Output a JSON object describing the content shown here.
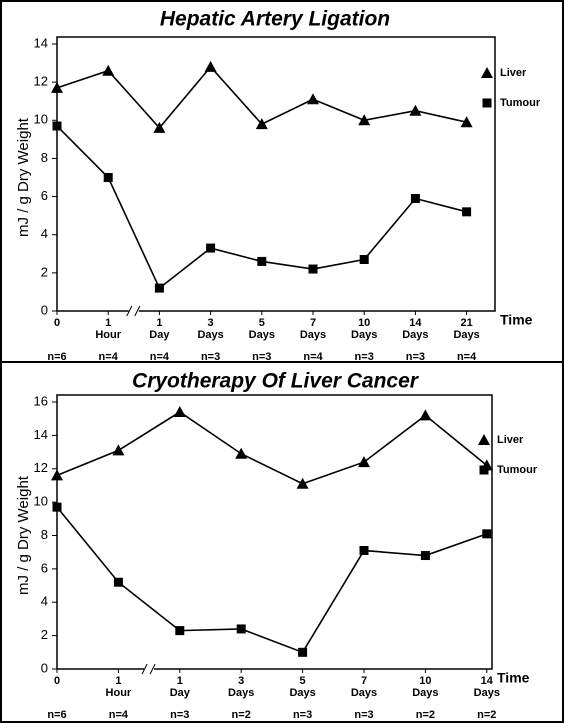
{
  "chart_data": [
    {
      "type": "line",
      "title": "Hepatic  Artery  Ligation",
      "y_label": "mJ / g  Dry  Weight",
      "x_label": "Time",
      "categories": [
        "0",
        "1\nHour",
        "1\nDay",
        "3\nDays",
        "5\nDays",
        "7\nDays",
        "10\nDays",
        "14\nDays",
        "21\nDays"
      ],
      "n_labels": [
        "n=6",
        "n=4",
        "n=4",
        "n=3",
        "n=3",
        "n=4",
        "n=3",
        "n=3",
        "n=4"
      ],
      "series": [
        {
          "name": "Liver",
          "color": "#000000",
          "marker": "triangle",
          "values": [
            11.7,
            12.6,
            9.6,
            12.8,
            9.8,
            11.1,
            10.0,
            10.5,
            9.9
          ]
        },
        {
          "name": "Tumour",
          "color": "#000000",
          "marker": "square",
          "values": [
            9.7,
            7.0,
            1.2,
            3.3,
            2.6,
            2.2,
            2.7,
            5.9,
            5.2
          ]
        }
      ],
      "ylim": [
        0,
        14
      ],
      "yticks": [
        0,
        2,
        4,
        6,
        8,
        10,
        12,
        14
      ],
      "legend": "right"
    },
    {
      "type": "line",
      "title": "Cryotherapy Of Liver Cancer",
      "y_label": "mJ / g  Dry  Weight",
      "x_label": "Time",
      "categories": [
        "0",
        "1\nHour",
        "1\nDay",
        "3\nDays",
        "5\nDays",
        "7\nDays",
        "10\nDays",
        "14\nDays"
      ],
      "n_labels": [
        "n=6",
        "n=4",
        "n=3",
        "n=2",
        "n=3",
        "n=3",
        "n=2",
        "n=2"
      ],
      "series": [
        {
          "name": "Liver",
          "color": "#000000",
          "marker": "triangle",
          "values": [
            11.6,
            13.1,
            15.4,
            12.9,
            11.1,
            12.4,
            15.2,
            12.2
          ]
        },
        {
          "name": "Tumour",
          "color": "#000000",
          "marker": "square",
          "values": [
            9.7,
            5.2,
            2.3,
            2.4,
            1.0,
            7.1,
            6.8,
            8.1
          ]
        }
      ],
      "ylim": [
        0,
        16
      ],
      "yticks": [
        0,
        2,
        4,
        6,
        8,
        10,
        12,
        14,
        16
      ],
      "legend": "right"
    }
  ]
}
